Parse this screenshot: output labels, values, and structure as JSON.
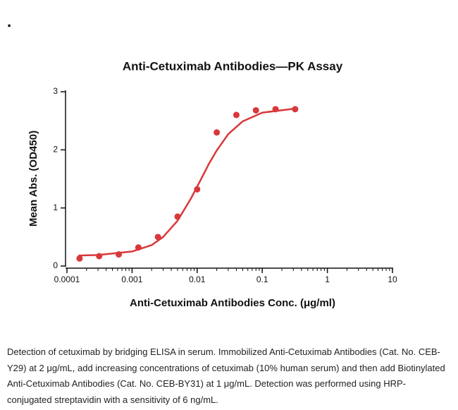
{
  "corner_mark": ".",
  "chart_data": {
    "type": "scatter",
    "title": "Anti-Cetuximab Antibodies—PK Assay",
    "xlabel": "Anti-Cetuximab Antibodies Conc.  (μg/ml)",
    "ylabel": "Mean Abs. (OD450)",
    "xscale": "log",
    "xlim": [
      0.0001,
      10
    ],
    "xticks": [
      0.0001,
      0.001,
      0.01,
      0.1,
      1,
      10
    ],
    "ylim": [
      0,
      3
    ],
    "yticks": [
      0,
      1,
      2,
      3
    ],
    "grid": false,
    "series": [
      {
        "style": "markers",
        "color": "#d9383a",
        "x": [
          0.00015625,
          0.0003125,
          0.000625,
          0.00125,
          0.0025,
          0.005,
          0.01,
          0.02,
          0.04,
          0.08,
          0.16,
          0.32
        ],
        "values": [
          0.13,
          0.17,
          0.2,
          0.32,
          0.5,
          0.85,
          1.32,
          2.3,
          2.6,
          2.68,
          2.7,
          2.7
        ]
      },
      {
        "style": "line",
        "color": "#d9383a",
        "x": [
          0.00015,
          0.0003,
          0.001,
          0.002,
          0.003,
          0.005,
          0.008,
          0.011,
          0.015,
          0.02,
          0.03,
          0.05,
          0.1,
          0.32
        ],
        "values": [
          0.18,
          0.19,
          0.25,
          0.36,
          0.5,
          0.78,
          1.16,
          1.455,
          1.75,
          1.99,
          2.27,
          2.49,
          2.64,
          2.71
        ]
      }
    ]
  },
  "caption": "Detection of cetuximab by bridging ELISA in serum. Immobilized Anti-Cetuximab Antibodies (Cat. No. CEB-Y29) at 2 μg/mL, add increasing concentrations of cetuximab (10% human serum) and then add Biotinylated Anti-Cetuximab Antibodies (Cat. No. CEB-BY31) at 1 μg/mL. Detection was performed using HRP-conjugated streptavidin with a sensitivity of 6 ng/mL."
}
